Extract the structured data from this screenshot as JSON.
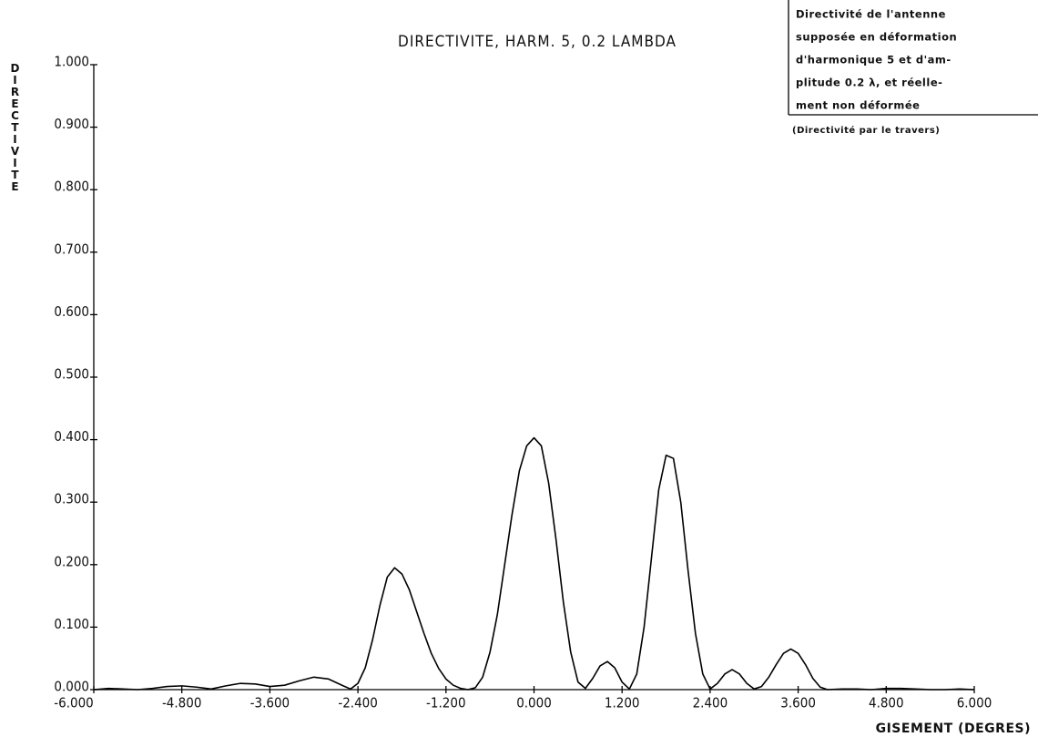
{
  "chart_data": {
    "type": "line",
    "title": "DIRECTIVITE, HARM. 5, 0.2 LAMBDA",
    "xlabel": "GISEMENT (DEGRES)",
    "ylabel": "DIRECTIVITE",
    "annotation": [
      "Directivité de l'antenne",
      "supposée en déformation",
      "d'harmonique 5 et d'am-",
      "plitude 0.2 λ, et réelle-",
      "ment non déformée"
    ],
    "annotation_note": "(Directivité par le travers)",
    "color": "#000000",
    "x": [
      -6.0,
      -5.8,
      -5.6,
      -5.4,
      -5.2,
      -5.0,
      -4.8,
      -4.6,
      -4.4,
      -4.2,
      -4.0,
      -3.8,
      -3.6,
      -3.4,
      -3.2,
      -3.0,
      -2.8,
      -2.6,
      -2.5,
      -2.4,
      -2.3,
      -2.2,
      -2.1,
      -2.0,
      -1.9,
      -1.8,
      -1.7,
      -1.6,
      -1.5,
      -1.4,
      -1.3,
      -1.2,
      -1.1,
      -1.0,
      -0.9,
      -0.8,
      -0.7,
      -0.6,
      -0.5,
      -0.4,
      -0.3,
      -0.2,
      -0.1,
      0.0,
      0.1,
      0.2,
      0.3,
      0.4,
      0.5,
      0.6,
      0.7,
      0.8,
      0.9,
      1.0,
      1.1,
      1.2,
      1.3,
      1.4,
      1.5,
      1.6,
      1.7,
      1.8,
      1.9,
      2.0,
      2.1,
      2.2,
      2.3,
      2.4,
      2.5,
      2.6,
      2.7,
      2.8,
      2.9,
      3.0,
      3.1,
      3.2,
      3.3,
      3.4,
      3.5,
      3.6,
      3.7,
      3.8,
      3.9,
      4.0,
      4.2,
      4.4,
      4.6,
      4.8,
      5.0,
      5.2,
      5.4,
      5.6,
      5.8,
      6.0
    ],
    "values": [
      0,
      0.002,
      0.001,
      0,
      0.002,
      0.005,
      0.006,
      0.004,
      0.001,
      0.006,
      0.01,
      0.009,
      0.005,
      0.007,
      0.014,
      0.02,
      0.017,
      0.006,
      0.001,
      0.01,
      0.035,
      0.08,
      0.135,
      0.18,
      0.195,
      0.185,
      0.16,
      0.125,
      0.09,
      0.058,
      0.034,
      0.017,
      0.007,
      0.002,
      0,
      0.003,
      0.02,
      0.06,
      0.12,
      0.2,
      0.28,
      0.35,
      0.39,
      0.403,
      0.39,
      0.33,
      0.24,
      0.14,
      0.06,
      0.012,
      0.002,
      0.018,
      0.038,
      0.045,
      0.035,
      0.012,
      0.001,
      0.025,
      0.1,
      0.21,
      0.32,
      0.375,
      0.37,
      0.3,
      0.19,
      0.09,
      0.025,
      0.001,
      0.01,
      0.025,
      0.032,
      0.025,
      0.01,
      0.001,
      0.005,
      0.02,
      0.04,
      0.058,
      0.065,
      0.058,
      0.04,
      0.018,
      0.004,
      0,
      0.001,
      0.001,
      0,
      0.002,
      0.002,
      0.001,
      0,
      0,
      0.001,
      0
    ],
    "xlim": [
      -6,
      6
    ],
    "ylim": [
      0,
      1
    ],
    "xticks": [
      {
        "value": -6,
        "label": "-6.000"
      },
      {
        "value": -4.8,
        "label": "-4.800"
      },
      {
        "value": -3.6,
        "label": "-3.600"
      },
      {
        "value": -2.4,
        "label": "-2.400"
      },
      {
        "value": -1.2,
        "label": "-1.200"
      },
      {
        "value": 0,
        "label": "0.000"
      },
      {
        "value": 1.2,
        "label": "1.200"
      },
      {
        "value": 2.4,
        "label": "2.400"
      },
      {
        "value": 3.6,
        "label": "3.600"
      },
      {
        "value": 4.8,
        "label": "4.800"
      },
      {
        "value": 6,
        "label": "6.000"
      }
    ],
    "yticks": [
      {
        "value": 0,
        "label": "0.000"
      },
      {
        "value": 0.1,
        "label": "0.100"
      },
      {
        "value": 0.2,
        "label": "0.200"
      },
      {
        "value": 0.3,
        "label": "0.300"
      },
      {
        "value": 0.4,
        "label": "0.400"
      },
      {
        "value": 0.5,
        "label": "0.500"
      },
      {
        "value": 0.6,
        "label": "0.600"
      },
      {
        "value": 0.7,
        "label": "0.700"
      },
      {
        "value": 0.8,
        "label": "0.800"
      },
      {
        "value": 0.9,
        "label": "0.900"
      },
      {
        "value": 1,
        "label": "1.000"
      }
    ],
    "grid": false
  }
}
